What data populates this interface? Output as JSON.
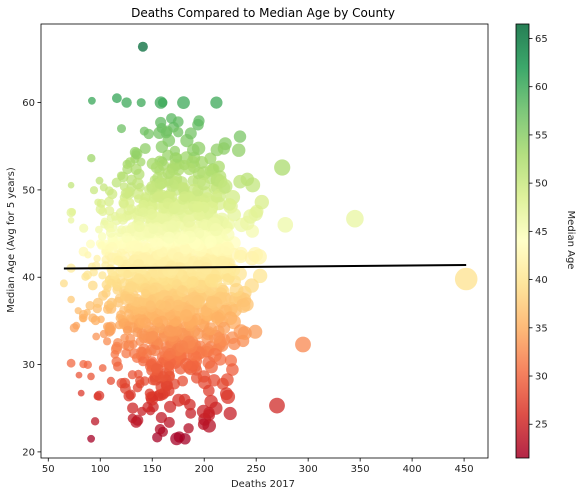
{
  "chart_data": {
    "type": "scatter",
    "title": "Deaths Compared to Median Age by County",
    "xlabel": "Deaths 2017",
    "ylabel": "Median Age (Avg for 5 years)",
    "colorbar_label": "Median Age",
    "xlim": [
      43,
      473
    ],
    "ylim": [
      19.3,
      69.0
    ],
    "x_ticks": [
      50,
      100,
      150,
      200,
      250,
      300,
      350,
      400,
      450
    ],
    "y_ticks": [
      20,
      30,
      40,
      50,
      60
    ],
    "colorbar_range": [
      21.5,
      66.5
    ],
    "colorbar_ticks": [
      25,
      30,
      35,
      40,
      45,
      50,
      55,
      60,
      65
    ],
    "colormap": "RdYlGn",
    "grid": false,
    "trend_line": {
      "x": [
        65,
        452
      ],
      "y": [
        41.0,
        41.4
      ],
      "color": "#000000"
    },
    "notable_points": [
      {
        "x": 141,
        "y": 66.4
      },
      {
        "x": 92,
        "y": 60.2
      },
      {
        "x": 116,
        "y": 60.5
      },
      {
        "x": 345,
        "y": 46.7
      },
      {
        "x": 452,
        "y": 39.8
      },
      {
        "x": 295,
        "y": 32.3
      },
      {
        "x": 270,
        "y": 25.3
      },
      {
        "x": 225,
        "y": 24.4
      },
      {
        "x": 176,
        "y": 21.7
      },
      {
        "x": 185,
        "y": 22.7
      },
      {
        "x": 95,
        "y": 23.5
      },
      {
        "x": 65,
        "y": 39.3
      },
      {
        "x": 75,
        "y": 34.2
      },
      {
        "x": 278,
        "y": 46.0
      },
      {
        "x": 175,
        "y": 57.8
      },
      {
        "x": 195,
        "y": 57.9
      }
    ],
    "bulk_cloud": {
      "description_of_density": "dense cluster of points",
      "x_center": 165,
      "x_spread": 35,
      "y_center": 41,
      "y_spread": 7,
      "count": 1400
    }
  }
}
